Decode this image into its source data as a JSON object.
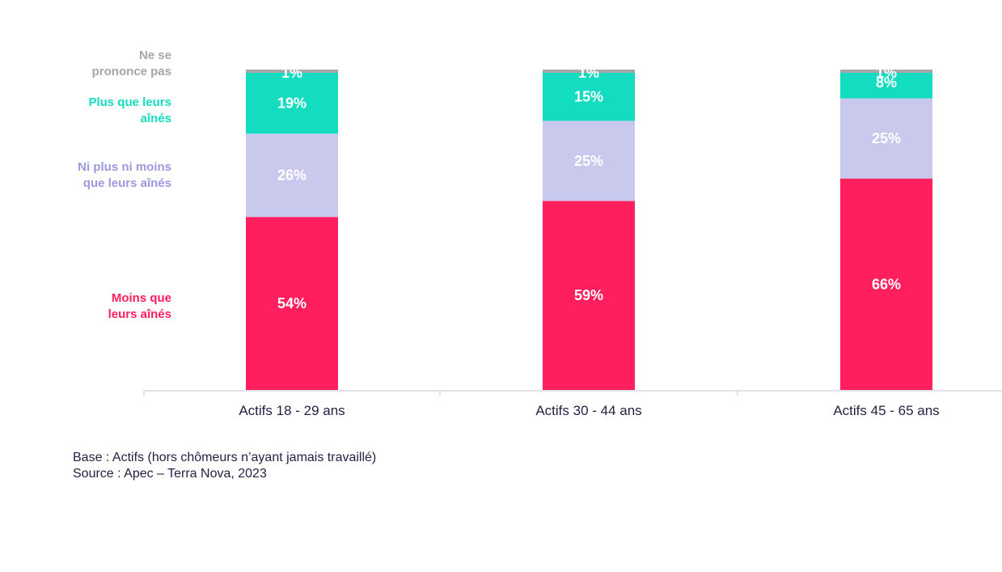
{
  "chart_data": {
    "type": "bar",
    "stacked": true,
    "categories": [
      "Actifs 18 - 29 ans",
      "Actifs 30 - 44 ans",
      "Actifs 45 - 65 ans"
    ],
    "series": [
      {
        "name": "Moins que leurs aînés",
        "legend_lines": [
          "Moins que",
          "leurs aînés"
        ],
        "color": "#ff1f5e",
        "values": [
          54,
          59,
          66
        ]
      },
      {
        "name": "Ni plus ni moins que leurs aînés",
        "legend_lines": [
          "Ni plus ni moins",
          "que leurs aînés"
        ],
        "color": "#c9c8ed",
        "values": [
          26,
          25,
          25
        ]
      },
      {
        "name": "Plus que leurs aînés",
        "legend_lines": [
          "Plus que leurs",
          "aînés"
        ],
        "color": "#14dcc0",
        "values": [
          19,
          15,
          8
        ]
      },
      {
        "name": "Ne se prononce pas",
        "legend_lines": [
          "Ne se",
          "prononce pas"
        ],
        "color": "#a6a6a6",
        "values": [
          1,
          1,
          1
        ]
      }
    ],
    "label_suffix": "%",
    "ylim": [
      0,
      100
    ],
    "title": "",
    "xlabel": "",
    "ylabel": ""
  },
  "footer": {
    "base": "Base : Actifs (hors chômeurs n’ayant jamais travaillé)",
    "source": "Source : Apec – Terra Nova, 2023"
  }
}
